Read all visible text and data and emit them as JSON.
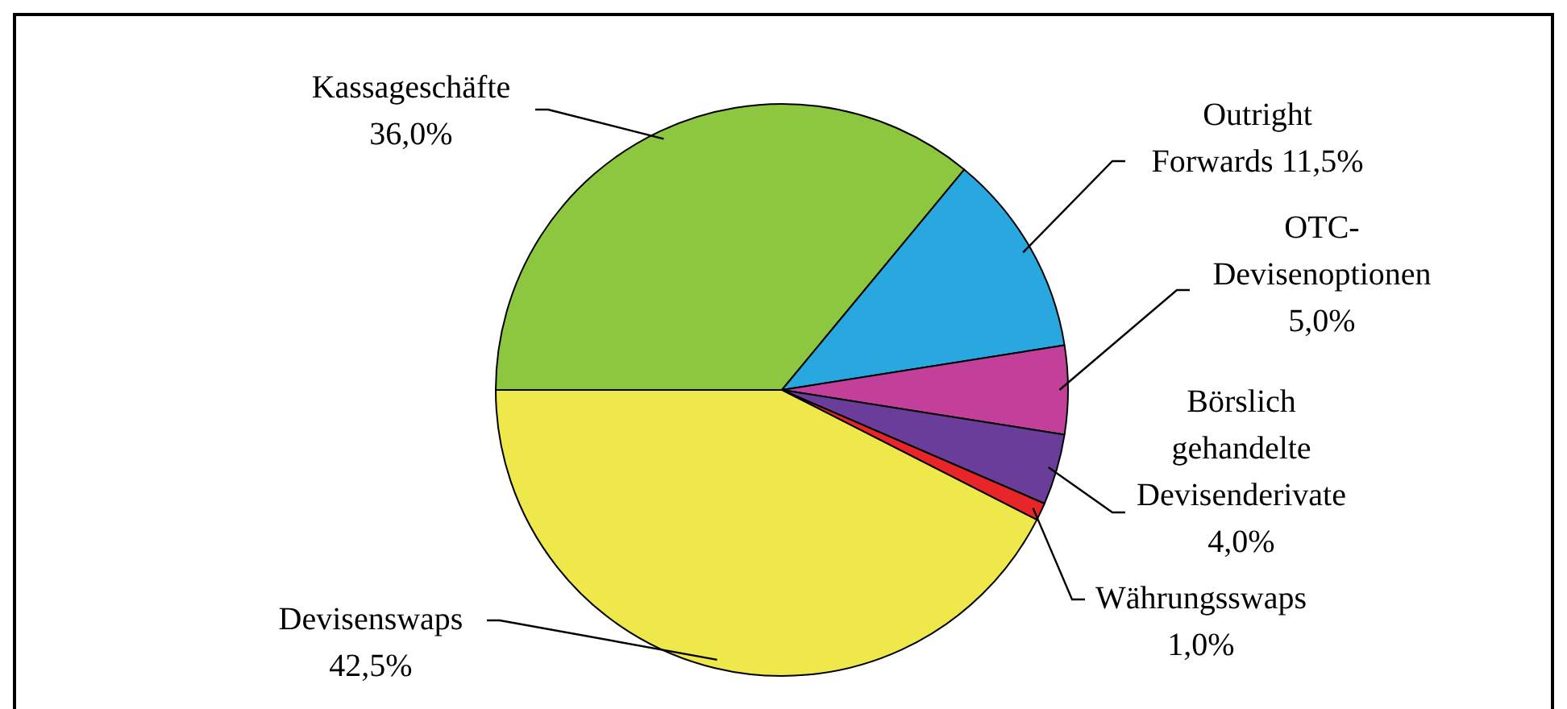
{
  "chart_data": {
    "type": "pie",
    "categories": [
      "Kassageschäfte",
      "Outright Forwards",
      "OTC-Devisenoptionen",
      "Börslich gehandelte Devisenderivate",
      "Währungsswaps",
      "Devisenswaps"
    ],
    "values": [
      36.0,
      11.5,
      5.0,
      4.0,
      1.0,
      42.5
    ],
    "value_labels": [
      "36,0%",
      "11,5%",
      "5,0%",
      "4,0%",
      "1,0%",
      "42,5%"
    ],
    "colors": [
      "#8dc63f",
      "#29a8e0",
      "#c2409a",
      "#6a3d9a",
      "#e8262a",
      "#eee84a"
    ],
    "legend": false
  }
}
